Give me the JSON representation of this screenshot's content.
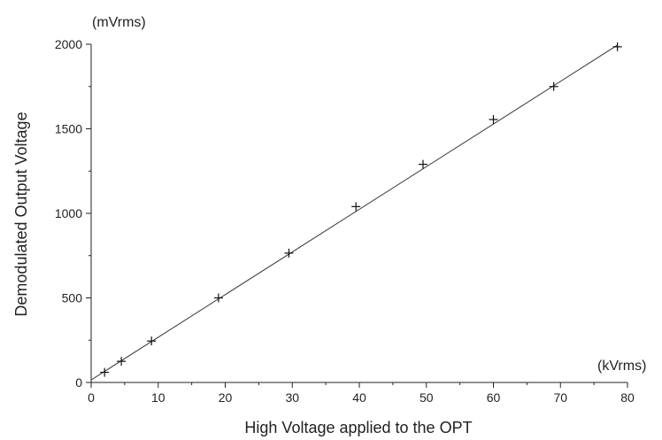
{
  "chart_data": {
    "type": "scatter",
    "xlabel": "High Voltage applied to the OPT",
    "ylabel": "Demodulated Output Voltage",
    "x_unit": "(kVrms)",
    "y_unit": "(mVrms)",
    "xlim": [
      0,
      80
    ],
    "ylim": [
      0,
      2000
    ],
    "x_ticks": [
      0,
      10,
      20,
      30,
      40,
      50,
      60,
      70,
      80
    ],
    "y_ticks": [
      0,
      500,
      1000,
      1500,
      2000
    ],
    "grid": false,
    "marker": "plus",
    "series": [
      {
        "points": [
          [
            2,
            60
          ],
          [
            4.5,
            125
          ],
          [
            9,
            245
          ],
          [
            19,
            500
          ],
          [
            29.5,
            765
          ],
          [
            39.5,
            1040
          ],
          [
            49.5,
            1290
          ],
          [
            60,
            1555
          ],
          [
            69,
            1750
          ],
          [
            78.5,
            1985
          ]
        ]
      }
    ],
    "fit_line": {
      "from": [
        0,
        15
      ],
      "to": [
        78.5,
        1995
      ]
    }
  }
}
